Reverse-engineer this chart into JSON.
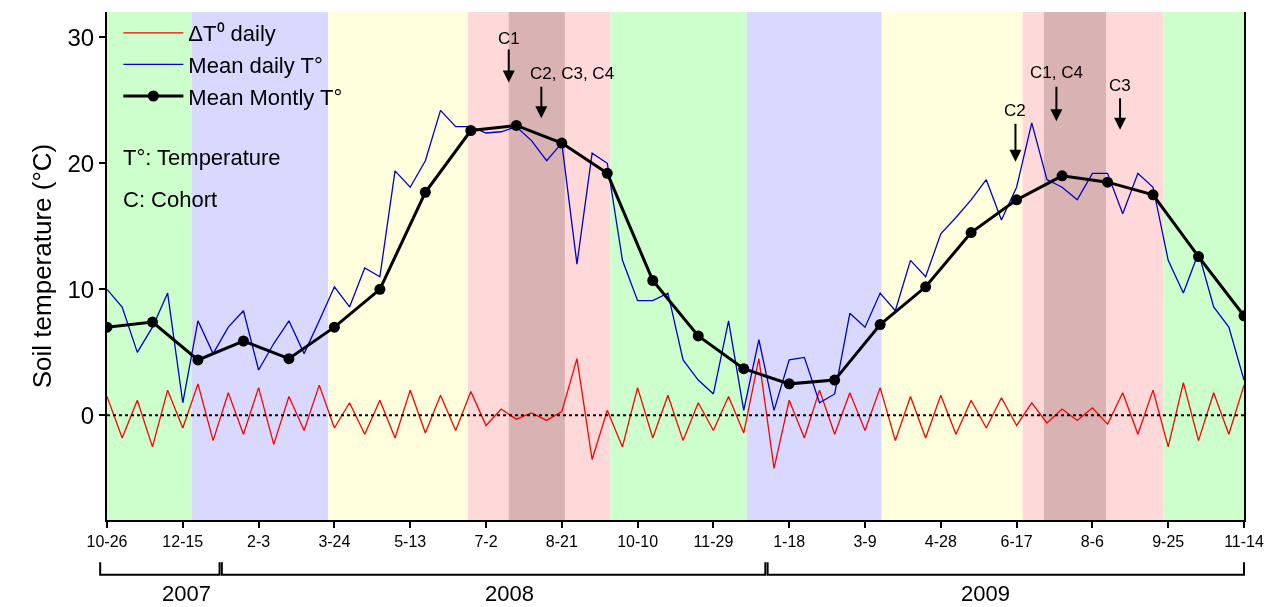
{
  "chart_data": {
    "type": "line",
    "ylabel": "Soil temperature (°C)",
    "x": [
      "2007-10-26",
      "2007-11-05",
      "2007-11-15",
      "2007-11-25",
      "2007-12-05",
      "2007-12-15",
      "2007-12-25",
      "2008-01-04",
      "2008-01-14",
      "2008-01-24",
      "2008-02-03",
      "2008-02-13",
      "2008-02-23",
      "2008-03-04",
      "2008-03-14",
      "2008-03-24",
      "2008-04-03",
      "2008-04-13",
      "2008-04-23",
      "2008-05-03",
      "2008-05-13",
      "2008-05-23",
      "2008-06-02",
      "2008-06-12",
      "2008-06-22",
      "2008-07-02",
      "2008-07-12",
      "2008-07-22",
      "2008-08-01",
      "2008-08-11",
      "2008-08-21",
      "2008-08-31",
      "2008-09-10",
      "2008-09-20",
      "2008-09-30",
      "2008-10-10",
      "2008-10-20",
      "2008-10-30",
      "2008-11-09",
      "2008-11-19",
      "2008-11-29",
      "2008-12-09",
      "2008-12-19",
      "2008-12-29",
      "2009-01-08",
      "2009-01-18",
      "2009-01-28",
      "2009-02-07",
      "2009-02-17",
      "2009-02-27",
      "2009-03-09",
      "2009-03-19",
      "2009-03-29",
      "2009-04-08",
      "2009-04-18",
      "2009-04-28",
      "2009-05-08",
      "2009-05-18",
      "2009-05-28",
      "2009-06-07",
      "2009-06-17",
      "2009-06-27",
      "2009-07-07",
      "2009-07-17",
      "2009-07-27",
      "2009-08-06",
      "2009-08-16",
      "2009-08-26",
      "2009-09-05",
      "2009-09-15",
      "2009-09-25",
      "2009-10-05",
      "2009-10-15",
      "2009-10-25",
      "2009-11-04",
      "2009-11-14"
    ],
    "series": [
      {
        "name": "ΔT⁰ daily",
        "color": "#ff0000",
        "values": [
          1.5,
          -1.8,
          1.2,
          -2.5,
          2.0,
          -1.0,
          2.5,
          -2.0,
          1.8,
          -1.5,
          2.2,
          -2.3,
          1.5,
          -1.2,
          2.4,
          -1.0,
          1.0,
          -1.5,
          1.2,
          -1.8,
          2.0,
          -1.4,
          1.6,
          -1.2,
          1.9,
          -0.8,
          0.5,
          -0.3,
          0.2,
          -0.4,
          0.3,
          4.5,
          -3.5,
          0.4,
          -2.5,
          2.2,
          -1.8,
          1.6,
          -2.0,
          1.0,
          -1.2,
          1.5,
          -1.4,
          4.5,
          -4.2,
          1.2,
          -1.8,
          2.0,
          -1.5,
          1.8,
          -1.2,
          2.2,
          -2.0,
          1.5,
          -1.8,
          1.6,
          -1.5,
          1.2,
          -1.0,
          1.4,
          -0.8,
          1.0,
          -0.6,
          0.5,
          -0.4,
          0.6,
          -0.7,
          1.8,
          -1.5,
          2.0,
          -2.5,
          2.6,
          -2.0,
          1.8,
          -1.5,
          2.4
        ]
      },
      {
        "name": "Mean daily T°",
        "color": "#0000cc",
        "values": [
          10,
          8.6,
          5,
          7,
          9.7,
          1.0,
          7.5,
          4.9,
          7.0,
          8.3,
          3.6,
          5.7,
          7.5,
          4.9,
          7.5,
          10.2,
          8.6,
          11.7,
          11,
          19.4,
          18.1,
          20.2,
          24.2,
          22.9,
          22.9,
          22.4,
          22.5,
          22.9,
          21.8,
          20.2,
          21.6,
          12,
          20.8,
          20,
          12.3,
          9.1,
          9.1,
          9.7,
          4.4,
          2.8,
          1.7,
          7.5,
          0.4,
          6.0,
          0.4,
          4.4,
          4.6,
          1.0,
          1.7,
          8.1,
          7.0,
          9.7,
          8.3,
          12.3,
          11.0,
          14.4,
          15.7,
          17.1,
          18.7,
          15.5,
          18.1,
          23.2,
          18.7,
          18.1,
          17.1,
          19.2,
          19.2,
          16,
          19.2,
          18.1,
          12.3,
          9.7,
          12.9,
          8.6,
          7.0,
          2.8
        ]
      },
      {
        "name": "Mean Montly T°",
        "color": "#000000",
        "marker": "circle",
        "x": [
          "2007-10-26",
          "2007-11-25",
          "2007-12-25",
          "2008-01-24",
          "2008-02-23",
          "2008-03-24",
          "2008-04-23",
          "2008-05-23",
          "2008-06-22",
          "2008-07-22",
          "2008-08-21",
          "2008-09-20",
          "2008-10-20",
          "2008-11-19",
          "2008-12-19",
          "2009-01-18",
          "2009-02-17",
          "2009-03-19",
          "2009-04-18",
          "2009-05-18",
          "2009-06-17",
          "2009-07-17",
          "2009-08-16",
          "2009-09-15",
          "2009-10-15",
          "2009-11-14"
        ],
        "values": [
          7.0,
          7.4,
          4.4,
          5.9,
          4.5,
          7.0,
          10.0,
          17.7,
          22.6,
          23.0,
          21.6,
          19.2,
          10.7,
          6.3,
          3.7,
          2.5,
          2.8,
          7.2,
          10.2,
          14.5,
          17.1,
          19.0,
          18.5,
          17.5,
          12.6,
          7.9
        ]
      }
    ],
    "xlim": [
      "2007-10-26",
      "2009-11-14"
    ],
    "xticks": [
      {
        "value": "2007-10-26",
        "label": "10-26"
      },
      {
        "value": "2007-12-15",
        "label": "12-15"
      },
      {
        "value": "2008-02-03",
        "label": "2-3"
      },
      {
        "value": "2008-03-24",
        "label": "3-24"
      },
      {
        "value": "2008-05-13",
        "label": "5-13"
      },
      {
        "value": "2008-07-02",
        "label": "7-2"
      },
      {
        "value": "2008-08-21",
        "label": "8-21"
      },
      {
        "value": "2008-10-10",
        "label": "10-10"
      },
      {
        "value": "2008-11-29",
        "label": "11-29"
      },
      {
        "value": "2009-01-18",
        "label": "1-18"
      },
      {
        "value": "2009-03-09",
        "label": "3-9"
      },
      {
        "value": "2009-04-28",
        "label": "4-28"
      },
      {
        "value": "2009-06-17",
        "label": "6-17"
      },
      {
        "value": "2009-08-06",
        "label": "8-6"
      },
      {
        "value": "2009-09-25",
        "label": "9-25"
      },
      {
        "value": "2009-11-14",
        "label": "11-14"
      }
    ],
    "ylim": [
      -8.3,
      32
    ],
    "yticks": [
      0,
      10,
      20,
      30
    ],
    "ref_lines": [
      {
        "axis": "y",
        "value": 0,
        "color": "#000000",
        "line_style": "dotted"
      }
    ],
    "bands": [
      {
        "axis": "x",
        "from": "2007-10-26",
        "to": "2007-12-21",
        "color": "#ccffcc"
      },
      {
        "axis": "x",
        "from": "2007-12-21",
        "to": "2008-03-20",
        "color": "#d9d9ff"
      },
      {
        "axis": "x",
        "from": "2008-03-20",
        "to": "2008-06-20",
        "color": "#ffffdd"
      },
      {
        "axis": "x",
        "from": "2008-06-20",
        "to": "2008-09-22",
        "color": "#ffd9d9"
      },
      {
        "axis": "x",
        "from": "2008-07-17",
        "to": "2008-08-23",
        "color": "#d9b3b3"
      },
      {
        "axis": "x",
        "from": "2008-09-22",
        "to": "2008-12-21",
        "color": "#ccffcc"
      },
      {
        "axis": "x",
        "from": "2008-12-21",
        "to": "2009-03-20",
        "color": "#d9d9ff"
      },
      {
        "axis": "x",
        "from": "2009-03-20",
        "to": "2009-06-21",
        "color": "#ffffdd"
      },
      {
        "axis": "x",
        "from": "2009-06-21",
        "to": "2009-09-22",
        "color": "#ffd9d9"
      },
      {
        "axis": "x",
        "from": "2009-07-05",
        "to": "2009-08-15",
        "color": "#d9b3b3"
      },
      {
        "axis": "x",
        "from": "2009-09-22",
        "to": "2009-11-14",
        "color": "#ccffcc"
      }
    ],
    "annotations": [
      "T°: Temperature",
      "C: Cohort",
      {
        "text": "C1",
        "x": "2008-07-17",
        "y": 26.4
      },
      "C2, C3, C4",
      "C2",
      "C1, C4",
      "C3",
      "2007",
      "2008",
      "2009"
    ],
    "legend": "top left",
    "grid": false
  }
}
